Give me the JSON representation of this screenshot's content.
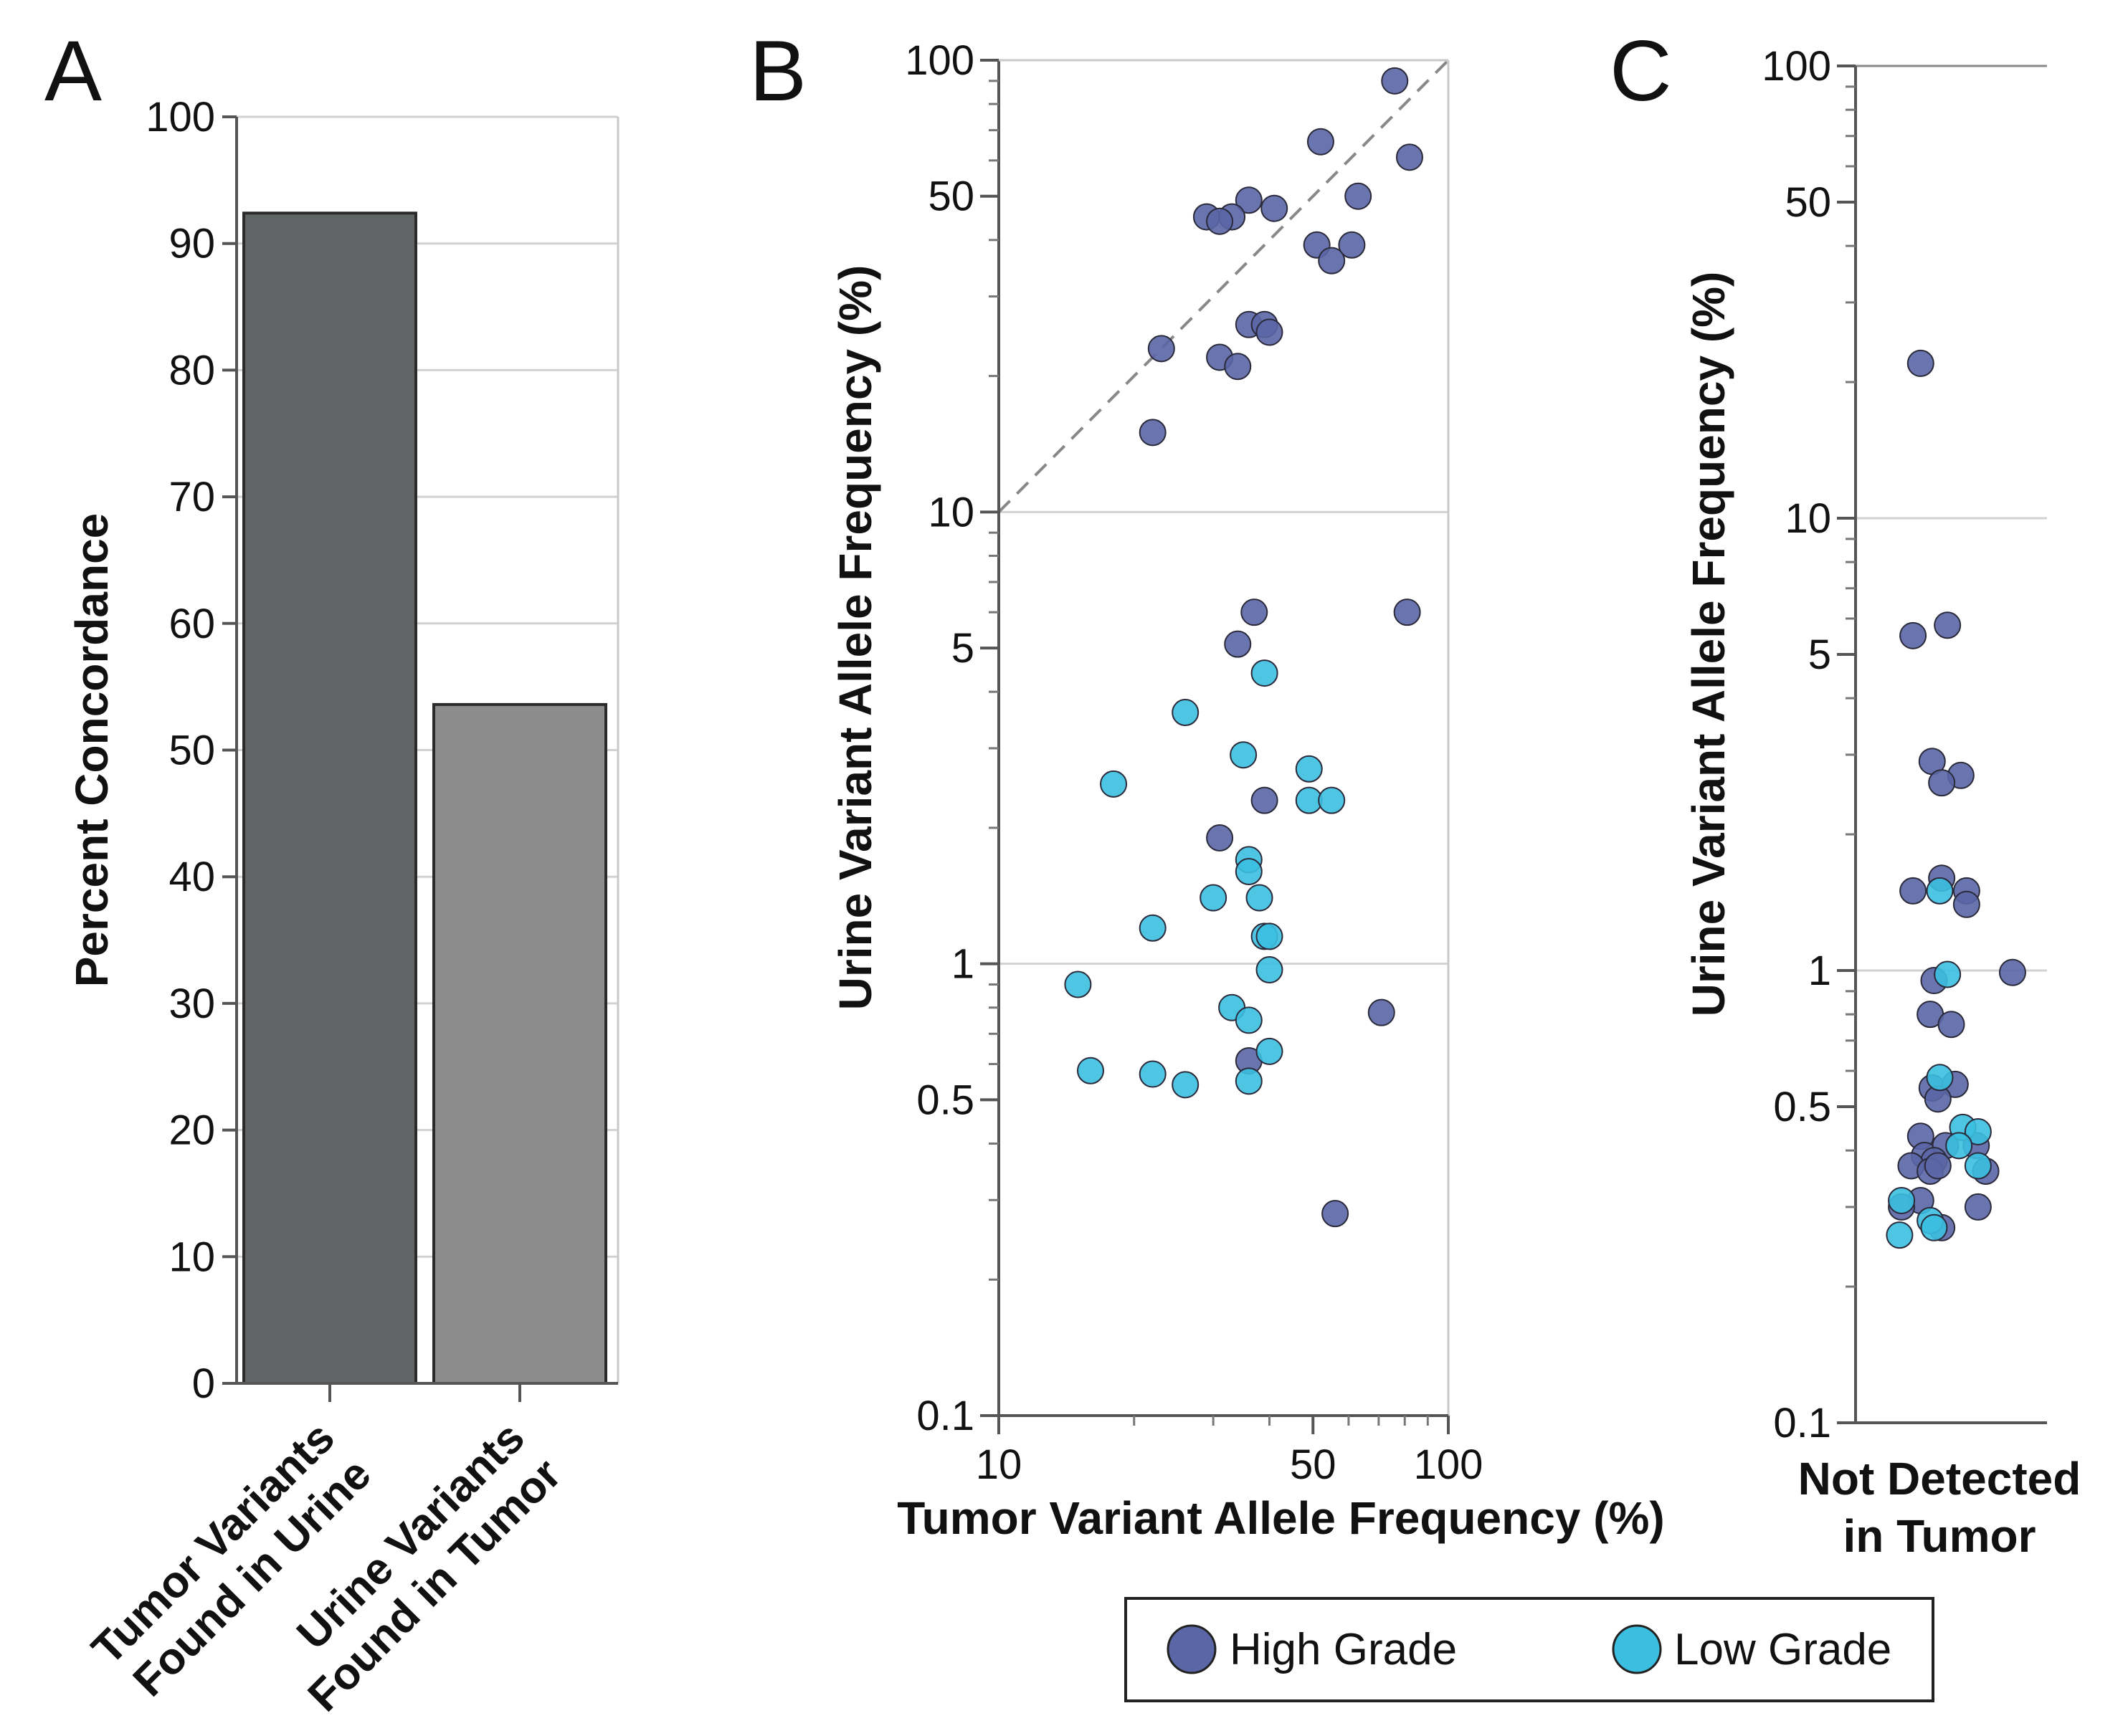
{
  "colors": {
    "high_grade": "#5a66a6",
    "low_grade": "#3bbfe0",
    "bar_dark": "#616464",
    "bar_light": "#8c8c8c",
    "grid": "#d2d2d2"
  },
  "legend": {
    "items": [
      {
        "label": "High Grade",
        "color": "#5a66a6"
      },
      {
        "label": "Low Grade",
        "color": "#3bbfe0"
      }
    ]
  },
  "chart_data": [
    {
      "panel": "A",
      "type": "bar",
      "title": "",
      "ylabel": "Percent Concordance",
      "xlabel": "",
      "ylim": [
        0,
        100
      ],
      "yticks": [
        0,
        10,
        20,
        30,
        40,
        50,
        60,
        70,
        80,
        90,
        100
      ],
      "categories": [
        "Tumor Variants Found in Urine",
        "Urine Variants Found in Tumor"
      ],
      "category_lines": [
        [
          "Tumor Variants",
          "Found in Urine"
        ],
        [
          "Urine Variants",
          "Found in Tumor"
        ]
      ],
      "values": [
        92.4,
        53.6
      ],
      "colors": [
        "#616464",
        "#8c8c8c"
      ],
      "grid": true
    },
    {
      "panel": "B",
      "type": "scatter",
      "xscale": "log",
      "yscale": "log",
      "xlabel": "Tumor Variant Allele Frequency (%)",
      "ylabel": "Urine Variant Allele Frequency (%)",
      "xlim": [
        10,
        100
      ],
      "ylim": [
        0.1,
        100
      ],
      "xticks": [
        10,
        50,
        100
      ],
      "yticks": [
        0.1,
        0.5,
        1,
        5,
        10,
        50,
        100
      ],
      "identity_line": true,
      "series": [
        {
          "name": "High Grade",
          "points": [
            [
              76,
              90
            ],
            [
              52,
              66
            ],
            [
              82,
              61
            ],
            [
              63,
              50
            ],
            [
              36,
              49
            ],
            [
              41,
              47
            ],
            [
              29,
              45
            ],
            [
              33,
              45
            ],
            [
              31,
              44
            ],
            [
              51,
              39
            ],
            [
              61,
              39
            ],
            [
              55,
              36
            ],
            [
              36,
              26
            ],
            [
              39,
              26
            ],
            [
              40,
              25
            ],
            [
              23,
              23
            ],
            [
              31,
              22
            ],
            [
              34,
              21
            ],
            [
              22,
              15
            ],
            [
              37,
              6.0
            ],
            [
              81,
              6.0
            ],
            [
              34,
              5.1
            ],
            [
              39,
              2.3
            ],
            [
              31,
              1.9
            ],
            [
              71,
              0.78
            ],
            [
              36,
              0.61
            ],
            [
              56,
              0.28
            ]
          ]
        },
        {
          "name": "Low Grade",
          "points": [
            [
              39,
              4.4
            ],
            [
              26,
              3.6
            ],
            [
              35,
              2.9
            ],
            [
              49,
              2.7
            ],
            [
              18,
              2.5
            ],
            [
              49,
              2.3
            ],
            [
              55,
              2.3
            ],
            [
              36,
              1.7
            ],
            [
              36,
              1.6
            ],
            [
              30,
              1.4
            ],
            [
              38,
              1.4
            ],
            [
              22,
              1.2
            ],
            [
              39,
              1.15
            ],
            [
              40,
              1.15
            ],
            [
              40,
              0.97
            ],
            [
              15,
              0.9
            ],
            [
              33,
              0.8
            ],
            [
              36,
              0.75
            ],
            [
              40,
              0.64
            ],
            [
              16,
              0.58
            ],
            [
              22,
              0.57
            ],
            [
              26,
              0.54
            ],
            [
              36,
              0.55
            ]
          ]
        }
      ]
    },
    {
      "panel": "C",
      "type": "scatter",
      "yscale": "log",
      "ylabel": "Urine Variant Allele Frequency (%)",
      "ylim": [
        0.1,
        100
      ],
      "yticks": [
        0.1,
        0.5,
        1,
        5,
        10,
        50,
        100
      ],
      "category_lines": [
        "Not Detected",
        "in Tumor"
      ],
      "x_jitter_range": [
        0,
        1
      ],
      "series": [
        {
          "name": "High Grade",
          "points": [
            [
              0.34,
              22
            ],
            [
              0.48,
              5.8
            ],
            [
              0.3,
              5.5
            ],
            [
              0.4,
              2.9
            ],
            [
              0.55,
              2.7
            ],
            [
              0.45,
              2.6
            ],
            [
              0.45,
              1.6
            ],
            [
              0.3,
              1.5
            ],
            [
              0.58,
              1.5
            ],
            [
              0.58,
              1.4
            ],
            [
              0.82,
              0.99
            ],
            [
              0.41,
              0.95
            ],
            [
              0.39,
              0.8
            ],
            [
              0.5,
              0.76
            ],
            [
              0.4,
              0.55
            ],
            [
              0.52,
              0.56
            ],
            [
              0.43,
              0.52
            ],
            [
              0.34,
              0.43
            ],
            [
              0.63,
              0.41
            ],
            [
              0.36,
              0.39
            ],
            [
              0.47,
              0.41
            ],
            [
              0.41,
              0.38
            ],
            [
              0.29,
              0.37
            ],
            [
              0.39,
              0.36
            ],
            [
              0.43,
              0.37
            ],
            [
              0.68,
              0.36
            ],
            [
              0.34,
              0.31
            ],
            [
              0.64,
              0.3
            ],
            [
              0.24,
              0.3
            ],
            [
              0.45,
              0.27
            ]
          ]
        },
        {
          "name": "Low Grade",
          "points": [
            [
              0.48,
              0.98
            ],
            [
              0.44,
              1.5
            ],
            [
              0.44,
              0.58
            ],
            [
              0.56,
              0.45
            ],
            [
              0.64,
              0.44
            ],
            [
              0.54,
              0.41
            ],
            [
              0.64,
              0.37
            ],
            [
              0.24,
              0.31
            ],
            [
              0.39,
              0.28
            ],
            [
              0.41,
              0.27
            ],
            [
              0.23,
              0.26
            ]
          ]
        }
      ]
    }
  ]
}
